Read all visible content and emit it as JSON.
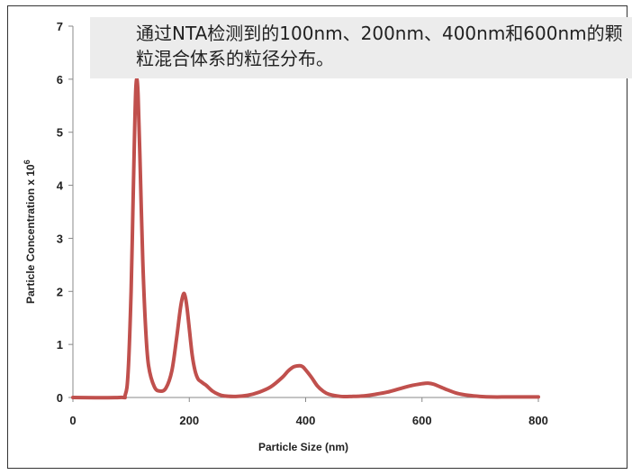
{
  "caption": "通过NTA检测到的100nm、200nm、400nm和600nm的颗粒混合体系的粒径分布。",
  "colors": {
    "series": "#c0504d",
    "axis": "#888888",
    "caption_bg": "#ececec"
  },
  "chart_data": {
    "type": "line",
    "title": "",
    "xlabel": "Particle Size (nm)",
    "ylabel": "Particle Concentration x 10",
    "ylabel_superscript": "6",
    "xlim": [
      0,
      800
    ],
    "ylim": [
      0,
      7
    ],
    "xticks": [
      0,
      200,
      400,
      600,
      800
    ],
    "yticks": [
      0,
      1,
      2,
      3,
      4,
      5,
      6,
      7
    ],
    "grid": false,
    "legend": "none",
    "series": [
      {
        "x": [
          0,
          80,
          90,
          95,
          100,
          103,
          106,
          108,
          110,
          112,
          115,
          120,
          125,
          130,
          140,
          150,
          160,
          170,
          178,
          185,
          190,
          193,
          196,
          200,
          205,
          210,
          215,
          220,
          225,
          230,
          240,
          250,
          260,
          280,
          300,
          320,
          340,
          360,
          370,
          380,
          390,
          395,
          400,
          410,
          420,
          430,
          440,
          460,
          480,
          500,
          520,
          540,
          560,
          580,
          600,
          610,
          620,
          640,
          660,
          680,
          700,
          720,
          750,
          800
        ],
        "y": [
          0,
          0,
          0.05,
          0.5,
          2.0,
          3.5,
          5.0,
          5.8,
          6.0,
          5.7,
          4.6,
          2.6,
          1.3,
          0.6,
          0.2,
          0.12,
          0.18,
          0.5,
          1.1,
          1.7,
          1.95,
          1.9,
          1.7,
          1.3,
          0.8,
          0.5,
          0.35,
          0.3,
          0.26,
          0.22,
          0.12,
          0.06,
          0.03,
          0.02,
          0.04,
          0.1,
          0.2,
          0.38,
          0.5,
          0.58,
          0.6,
          0.58,
          0.52,
          0.38,
          0.22,
          0.12,
          0.06,
          0.02,
          0.02,
          0.03,
          0.06,
          0.1,
          0.16,
          0.22,
          0.26,
          0.27,
          0.25,
          0.16,
          0.08,
          0.04,
          0.02,
          0.01,
          0.01,
          0.01
        ]
      }
    ]
  }
}
